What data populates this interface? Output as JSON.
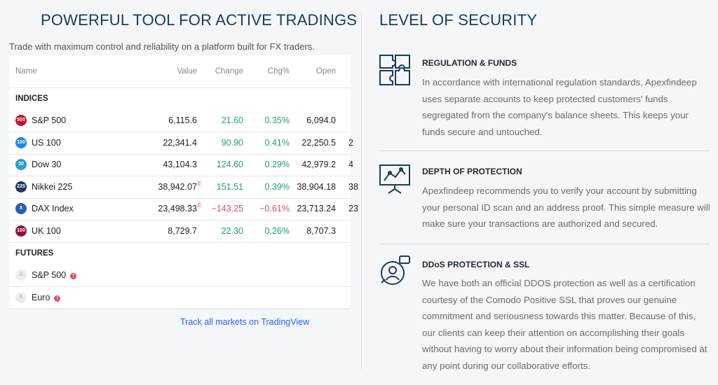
{
  "left": {
    "title": "POWERFUL TOOL FOR ACTIVE TRADINGS",
    "subtitle": "Trade with maximum control and reliability on a platform built for FX traders.",
    "table": {
      "headers": [
        "Name",
        "Value",
        "Change",
        "Chg%",
        "Open"
      ],
      "groups": [
        {
          "name": "INDICES",
          "rows": [
            {
              "badge": "500",
              "name": "S&P 500",
              "value": "6,115.6",
              "change": "21.60",
              "chg": "0.35%",
              "open": "6,094.0",
              "dir": "up"
            },
            {
              "badge": "100",
              "name": "US 100",
              "value": "22,341.4",
              "change": "90.90",
              "chg": "0.41%",
              "open": "22,250.5",
              "extra": "2",
              "dir": "up"
            },
            {
              "badge": "30",
              "name": "Dow 30",
              "value": "43,104.3",
              "change": "124.60",
              "chg": "0.29%",
              "open": "42,979.2",
              "extra": "4",
              "dir": "up"
            },
            {
              "badge": "225",
              "name": "Nikkei 225",
              "value": "38,942.07",
              "flag": "E",
              "change": "151.51",
              "chg": "0.39%",
              "open": "38,904.18",
              "extra": "38",
              "dir": "up"
            },
            {
              "badge": "X",
              "name": "DAX Index",
              "value": "23,498.33",
              "flag": "E",
              "change": "−143.25",
              "chg": "−0.61%",
              "open": "23,713.24",
              "extra": "23",
              "dir": "down"
            },
            {
              "badge": "100",
              "name": "UK 100",
              "value": "8,729.7",
              "change": "22.30",
              "chg": "0.26%",
              "open": "8,707.3",
              "dir": "up"
            }
          ]
        },
        {
          "name": "FUTURES",
          "rows": [
            {
              "badge": "S",
              "name": "S&P 500",
              "warn": "!"
            },
            {
              "badge": "E",
              "name": "Euro",
              "warn": "!"
            }
          ]
        }
      ]
    },
    "link": "Track all markets on TradingView"
  },
  "right": {
    "title": "LEVEL OF SECURITY",
    "items": [
      {
        "heading": "REGULATION & FUNDS",
        "text": "In accordance with international regulation standards, Apexfindeep uses separate accounts to keep protected customers' funds segregated from the company's balance sheets. This keeps your funds secure and untouched."
      },
      {
        "heading": "DEPTH OF PROTECTION",
        "text": "Apexfindeep recommends you to verify your account by submitting your personal ID scan and an address proof. This simple measure will make sure your transactions are authorized and secured."
      },
      {
        "heading": "DDoS PROTECTION & SSL",
        "text": "We have both an official DDOS protection as well as a certification courtesy of the Comodo Positive SSL that proves our genuine commitment and seriousness towards this matter. Because of this, our clients can keep their attention on accomplishing their goals without having to worry about their information being compromised at any point during our collaborative efforts."
      }
    ]
  }
}
